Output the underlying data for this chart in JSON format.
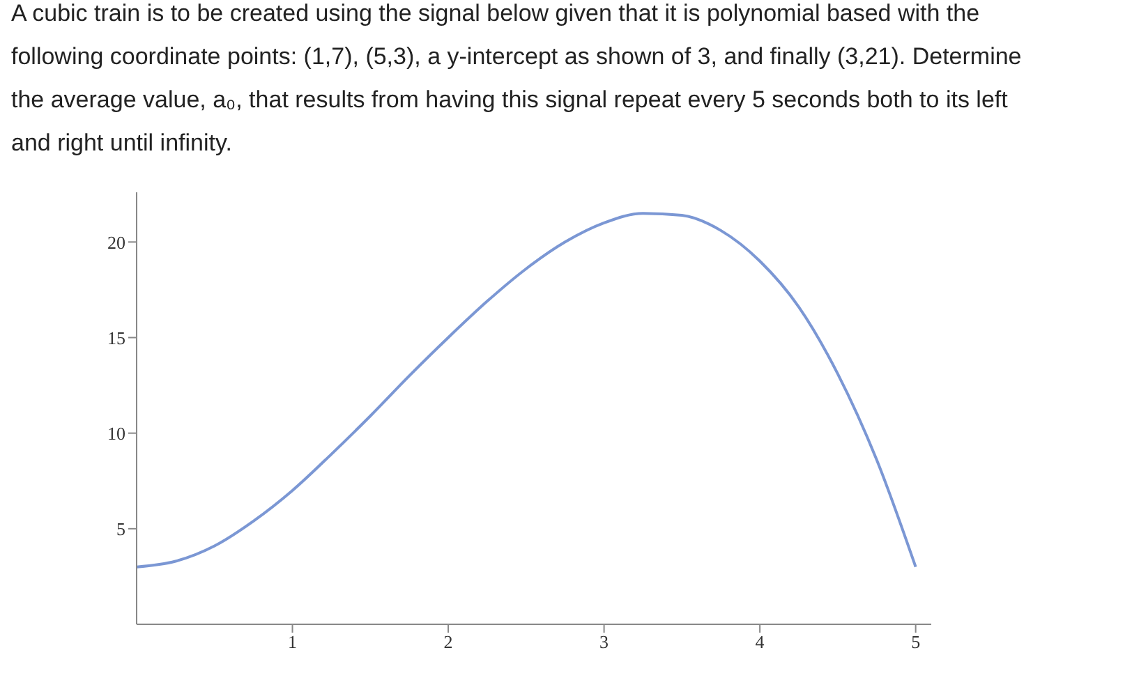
{
  "chart_data": {
    "type": "line",
    "title": "A cubic train is to be created using the signal below given that it is polynomial based with the following coordinate points: (1,7), (5,3), a y-intercept as shown of 3, and finally (3,21). Determine the average value, a₀, that results from having this signal repeat every 5 seconds both to its left and right until infinity.",
    "x": [
      0,
      0.25,
      0.5,
      0.75,
      1,
      1.25,
      1.5,
      1.75,
      2,
      2.25,
      2.5,
      2.75,
      3,
      3.25,
      3.5,
      3.75,
      4,
      4.25,
      4.5,
      4.75,
      5
    ],
    "series": [
      {
        "color": "#7b97d4",
        "values": [
          3,
          3.3,
          4.1,
          5.4,
          7,
          8.9,
          10.9,
          13,
          15,
          16.9,
          18.6,
          20,
          21,
          21.5,
          21.4,
          20.6,
          19,
          16.6,
          13.1,
          8.6,
          3
        ]
      }
    ],
    "xlim": [
      0,
      5.1
    ],
    "xticks": [
      1,
      2,
      3,
      4,
      5
    ],
    "ylim": [
      0,
      22.6
    ],
    "yticks": [
      5,
      10,
      15,
      20
    ]
  }
}
